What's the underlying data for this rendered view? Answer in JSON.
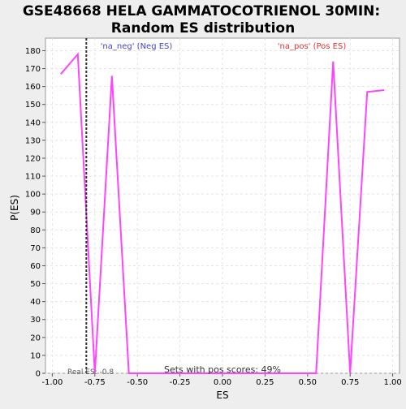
{
  "chart_data": {
    "type": "line",
    "title_line1": "GSE48668 HELA GAMMATOCOTRIENOL 30MIN:",
    "title_line2": "Random ES distribution",
    "xlabel": "ES",
    "ylabel": "P(ES)",
    "xlim": [
      -1.04,
      1.04
    ],
    "ylim": [
      0,
      187
    ],
    "x_ticks": [
      -1.0,
      -0.75,
      -0.5,
      -0.25,
      0.0,
      0.25,
      0.5,
      0.75,
      1.0
    ],
    "x_tick_labels": [
      "-1.00",
      "-0.75",
      "-0.50",
      "-0.25",
      "0.00",
      "0.25",
      "0.50",
      "0.75",
      "1.00"
    ],
    "y_ticks": [
      0,
      10,
      20,
      30,
      40,
      50,
      60,
      70,
      80,
      90,
      100,
      110,
      120,
      130,
      140,
      150,
      160,
      170,
      180
    ],
    "grid": true,
    "neg_label": "'na_neg' (Neg ES)",
    "pos_label": "'na_pos' (Pos ES)",
    "neg_color": "#4444cc",
    "pos_color": "#dd3333",
    "line_color": "#ff44ff",
    "real_es_label": "Real ES: -0.8",
    "real_es_value": -0.8,
    "footer_label": "Sets with pos scores: 49%",
    "series": [
      {
        "x": [
          -0.95,
          -0.85,
          -0.75,
          -0.65,
          -0.55,
          -0.45,
          -0.35,
          -0.25,
          -0.15,
          -0.05,
          0.05,
          0.15,
          0.25,
          0.35,
          0.45,
          0.55,
          0.65,
          0.75,
          0.85,
          0.95
        ],
        "values": [
          167,
          178,
          0,
          166,
          0,
          0,
          0,
          0,
          0,
          0,
          0,
          0,
          0,
          0,
          0,
          0,
          174,
          0,
          157,
          158
        ]
      }
    ]
  }
}
